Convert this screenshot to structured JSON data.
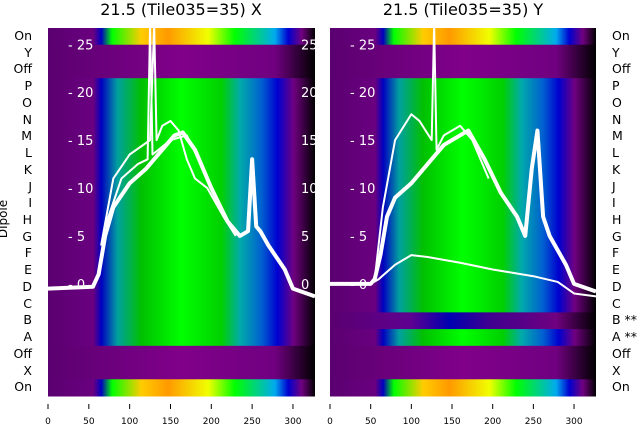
{
  "chart_data": [
    {
      "type": "heatmap",
      "title": "21.5 (Tile035=35) X",
      "ylabel": "Dipole",
      "row_labels": [
        "On",
        "Y",
        "Off",
        "P",
        "O",
        "N",
        "M",
        "L",
        "K",
        "J",
        "I",
        "H",
        "G",
        "F",
        "E",
        "D",
        "C",
        "B",
        "A",
        "Off",
        "X",
        "On"
      ],
      "x_ticks": [
        0,
        50,
        100,
        150,
        200,
        250,
        300
      ],
      "xlim": [
        0,
        327
      ],
      "inner_y_ticks": [
        0,
        5,
        10,
        15,
        20,
        25
      ],
      "ylim": [
        -11.7,
        26.7
      ],
      "off_rows": [
        1,
        2,
        19,
        20
      ],
      "series": [
        {
          "name": "thick",
          "x": [
            0,
            55,
            62,
            70,
            80,
            100,
            120,
            140,
            155,
            165,
            180,
            200,
            220,
            235,
            245,
            250,
            255,
            260,
            270,
            290,
            300,
            327
          ],
          "y": [
            -0.5,
            -0.3,
            1,
            5,
            8,
            10.5,
            12,
            14,
            15.5,
            15.8,
            14,
            10,
            6.5,
            5,
            5.5,
            13,
            6,
            5.5,
            4,
            1.5,
            -0.5,
            -1.3
          ]
        },
        {
          "name": "thin",
          "x": [
            65,
            80,
            100,
            125,
            130,
            133,
            140,
            150,
            160,
            170,
            180,
            195,
            215,
            230
          ],
          "y": [
            4,
            11,
            13.5,
            15,
            27,
            15,
            16.5,
            17,
            16,
            13,
            11,
            10,
            7,
            5
          ]
        },
        {
          "name": "thin2",
          "x": [
            70,
            90,
            110,
            122,
            125,
            128,
            150,
            170,
            190,
            210
          ],
          "y": [
            6,
            11,
            12.5,
            13,
            27,
            13.5,
            15,
            15.5,
            12,
            8
          ]
        }
      ]
    },
    {
      "type": "heatmap",
      "title": "21.5 (Tile035=35) Y",
      "row_labels": [
        "On",
        "Y",
        "Off",
        "P",
        "O",
        "N",
        "M",
        "L",
        "K",
        "J",
        "I",
        "H",
        "G",
        "F",
        "E",
        "D",
        "C",
        "B **",
        "A **",
        "Off",
        "X",
        "On"
      ],
      "x_ticks": [
        0,
        50,
        100,
        150,
        200,
        250,
        300
      ],
      "xlim": [
        0,
        327
      ],
      "inner_y_ticks": [
        0,
        5,
        10,
        15,
        20,
        25
      ],
      "ylim": [
        -11.7,
        26.7
      ],
      "off_rows": [
        1,
        2,
        17,
        19,
        20
      ],
      "series": [
        {
          "name": "thick",
          "x": [
            0,
            50,
            55,
            62,
            70,
            80,
            100,
            120,
            140,
            160,
            170,
            190,
            210,
            230,
            240,
            248,
            255,
            262,
            270,
            290,
            300,
            327
          ],
          "y": [
            0,
            0,
            0.5,
            3,
            7,
            9,
            10.5,
            12.5,
            14.5,
            15.5,
            16,
            13,
            9.5,
            7,
            5,
            12,
            16,
            7,
            5,
            2,
            0,
            -0.8
          ]
        },
        {
          "name": "thin",
          "x": [
            55,
            65,
            80,
            100,
            110,
            125,
            128,
            131,
            140,
            160,
            175,
            195
          ],
          "y": [
            0.5,
            8,
            15,
            17.7,
            17,
            15,
            27,
            14,
            15.5,
            16.5,
            15,
            11
          ]
        },
        {
          "name": "low",
          "x": [
            0,
            50,
            60,
            80,
            100,
            120,
            160,
            200,
            250,
            280,
            300,
            327
          ],
          "y": [
            0,
            0,
            0.5,
            2,
            3,
            2.8,
            2.2,
            1.5,
            0.8,
            0.2,
            -1,
            -1.3
          ]
        }
      ]
    }
  ]
}
